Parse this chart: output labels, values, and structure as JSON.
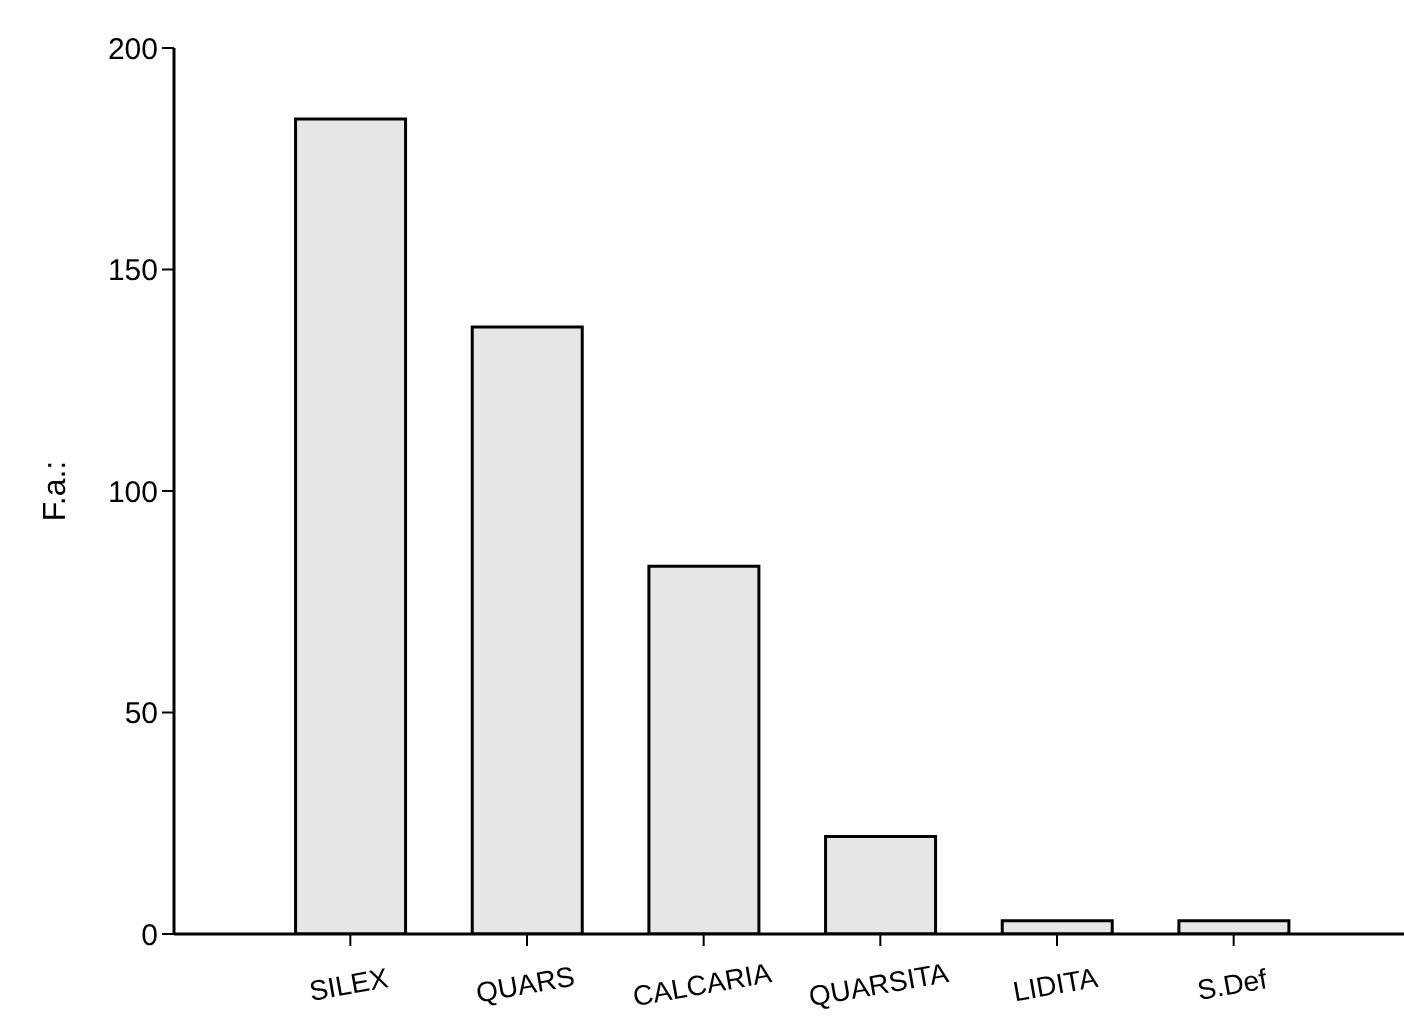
{
  "chart_data": {
    "type": "bar",
    "ylabel": "F.a.:",
    "categories": [
      "SILEX",
      "QUARS",
      "CALCARIA",
      "QUARSITA",
      "LIDITA",
      "S.Def"
    ],
    "values": [
      184,
      137,
      83,
      22,
      3,
      3
    ],
    "color": "#e6e6e6",
    "ylim": [
      0,
      200
    ],
    "yticks": [
      0,
      50,
      100,
      150,
      200
    ],
    "grid": false,
    "legend": false
  }
}
